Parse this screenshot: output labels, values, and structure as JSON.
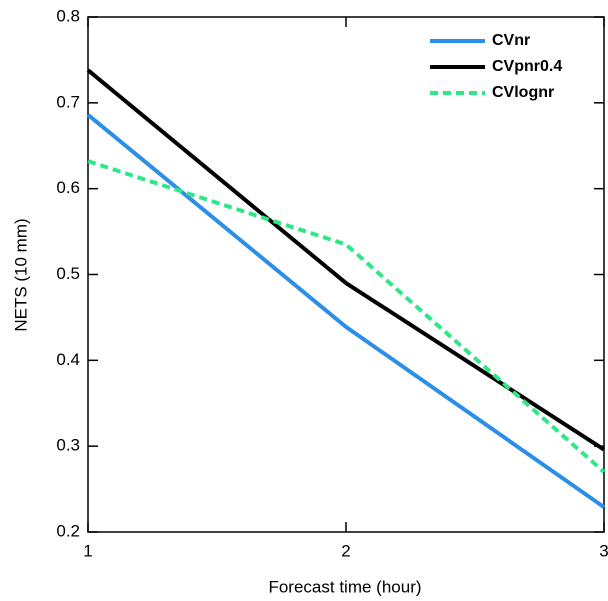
{
  "chart_data": {
    "type": "line",
    "x": [
      1,
      2,
      3
    ],
    "xlim": [
      1,
      3
    ],
    "xticks": [
      1,
      2,
      3
    ],
    "ylim": [
      0.2,
      0.8
    ],
    "yticks": [
      0.2,
      0.3,
      0.4,
      0.5,
      0.6,
      0.7,
      0.8
    ],
    "xlabel": "Forecast time (hour)",
    "ylabel": "NETS (10 mm)",
    "legend": "upper right",
    "series": [
      {
        "name": "CVnr",
        "color": "#2b8fe8",
        "line_style": "solid",
        "values": [
          0.686,
          0.439,
          0.229
        ]
      },
      {
        "name": "CVpnr0.4",
        "color": "#000000",
        "line_style": "solid",
        "values": [
          0.738,
          0.49,
          0.296
        ]
      },
      {
        "name": "CVlognr",
        "color": "#2ee887",
        "line_style": "dashed",
        "values": [
          0.632,
          0.535,
          0.27
        ]
      }
    ]
  }
}
